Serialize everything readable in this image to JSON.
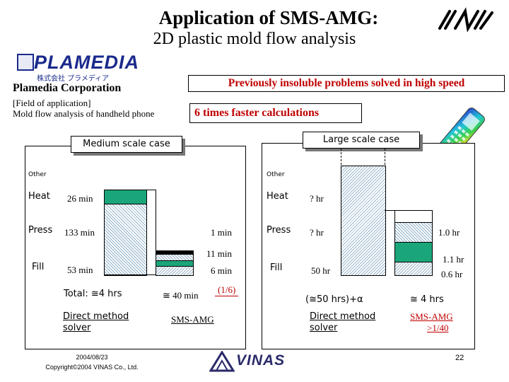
{
  "header": {
    "title": "Application of SMS-AMG:",
    "subtitle": "2D plastic mold flow analysis",
    "logo_sms": "SMS"
  },
  "company": {
    "logo": "PLAMEDIA",
    "logo_kana": "株式会社 プラメディア",
    "name": "Plamedia Corporation",
    "field_label": "[Field of application]",
    "field_value": "Mold flow analysis of handheld phone"
  },
  "banners": {
    "insoluble": "Previously insoluble problems solved in high speed",
    "faster": "6 times faster calculations"
  },
  "medium": {
    "label": "Medium scale case",
    "other": "Other",
    "heat": "Heat",
    "press": "Press",
    "fill": "Fill",
    "heat_val": "26 min",
    "press_val": "133 min",
    "fill_val": "53 min",
    "amg_press": "1 min",
    "amg_heat": "11 min",
    "amg_fill": "6 min",
    "total": "Total: ≅4 hrs",
    "amg_total": "≅ 40 min",
    "ratio": "(1/6)",
    "direct": "Direct method",
    "solver": "solver",
    "amg_label": "SMS-AMG"
  },
  "large": {
    "label": "Large scale case",
    "other": "Other",
    "heat": "Heat",
    "press": "Press",
    "fill": "Fill",
    "heat_val": "? hr",
    "press_val": "? hr",
    "fill_val": "50 hr",
    "amg_press": "1.0 hr",
    "amg_heat": "1.1 hr",
    "amg_fill": "0.6 hr",
    "total": "(≅50 hrs)+α",
    "amg_total": "≅ 4 hrs",
    "direct": "Direct method",
    "solver": "solver",
    "amg_label": "SMS-AMG",
    "ratio": ">1/40"
  },
  "footer": {
    "date": "2004/08/23",
    "copyright": "Copyright©2004 VINAS Co., Ltd.",
    "vinas": "VINAS",
    "page": "22"
  },
  "colors": {
    "heat": "#1aa67a",
    "accent_red": "#c00000",
    "logo_blue": "#1a2a8c"
  }
}
